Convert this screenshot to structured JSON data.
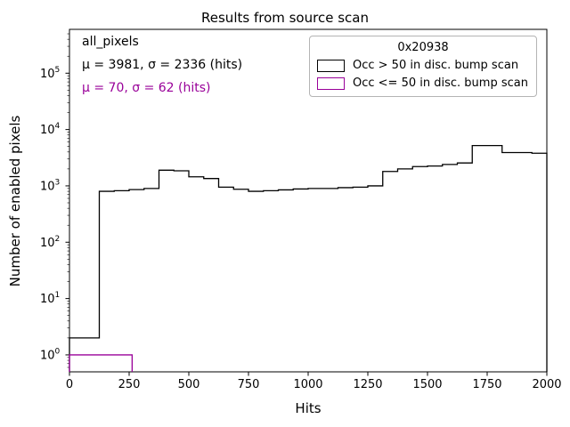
{
  "chart_data": {
    "type": "step-histogram",
    "title": "Results from source scan",
    "xlabel": "Hits",
    "ylabel": "Number of enabled pixels",
    "xlim": [
      0,
      2000
    ],
    "ylim": [
      0.5,
      600000
    ],
    "yscale": "log",
    "grid": false,
    "x_ticks": [
      0,
      250,
      500,
      750,
      1000,
      1250,
      1500,
      1750,
      2000
    ],
    "y_tick_exponents": [
      0,
      1,
      2,
      3,
      4,
      5
    ],
    "annotations": [
      {
        "text": "all_pixels",
        "color": "#000000"
      },
      {
        "text": "μ = 3981, σ = 2336 (hits)",
        "color": "#000000"
      },
      {
        "text": "μ = 70, σ = 62 (hits)",
        "color": "#990099"
      }
    ],
    "legend": {
      "title": "0x20938",
      "position": "upper right",
      "entries": [
        {
          "label": "Occ > 50 in disc. bump scan",
          "color": "#000000"
        },
        {
          "label": "Occ <= 50 in disc. bump scan",
          "color": "#990099"
        }
      ]
    },
    "series": [
      {
        "name": "Occ > 50 in disc. bump scan",
        "color": "#000000",
        "bin_edges": [
          0,
          62.5,
          125,
          187.5,
          250,
          312.5,
          375,
          437.5,
          500,
          562.5,
          625,
          687.5,
          750,
          812.5,
          875,
          937.5,
          1000,
          1062.5,
          1125,
          1187.5,
          1250,
          1312.5,
          1375,
          1437.5,
          1500,
          1562.5,
          1625,
          1687.5,
          1750,
          1812.5,
          1875,
          1937.5,
          2000
        ],
        "counts": [
          2,
          2,
          800,
          820,
          860,
          900,
          1900,
          1850,
          1450,
          1350,
          950,
          870,
          800,
          820,
          850,
          880,
          900,
          900,
          930,
          950,
          1000,
          1800,
          2000,
          2200,
          2250,
          2400,
          2550,
          5200,
          5200,
          3900,
          3900,
          3800
        ]
      },
      {
        "name": "Occ <= 50 in disc. bump scan",
        "color": "#990099",
        "bin_edges": [
          0,
          262.5
        ],
        "counts": [
          1
        ]
      }
    ]
  }
}
